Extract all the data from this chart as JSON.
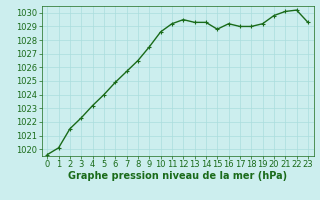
{
  "x": [
    0,
    1,
    2,
    3,
    4,
    5,
    6,
    7,
    8,
    9,
    10,
    11,
    12,
    13,
    14,
    15,
    16,
    17,
    18,
    19,
    20,
    21,
    22,
    23
  ],
  "y": [
    1019.6,
    1020.1,
    1021.5,
    1022.3,
    1023.2,
    1024.0,
    1024.9,
    1025.7,
    1026.5,
    1027.5,
    1028.6,
    1029.2,
    1029.5,
    1029.3,
    1029.3,
    1028.8,
    1029.2,
    1029.0,
    1029.0,
    1029.2,
    1029.8,
    1030.1,
    1030.2,
    1029.3
  ],
  "line_color": "#1a6b1a",
  "marker": "+",
  "background_color": "#cceeee",
  "grid_color": "#aadddd",
  "xlabel": "Graphe pression niveau de la mer (hPa)",
  "xlabel_color": "#1a6b1a",
  "tick_color": "#1a6b1a",
  "ylim": [
    1019.5,
    1030.5
  ],
  "yticks": [
    1020,
    1021,
    1022,
    1023,
    1024,
    1025,
    1026,
    1027,
    1028,
    1029,
    1030
  ],
  "xticks": [
    0,
    1,
    2,
    3,
    4,
    5,
    6,
    7,
    8,
    9,
    10,
    11,
    12,
    13,
    14,
    15,
    16,
    17,
    18,
    19,
    20,
    21,
    22,
    23
  ],
  "xlim": [
    -0.5,
    23.5
  ],
  "xlabel_fontsize": 7,
  "tick_fontsize": 6,
  "line_width": 1.0,
  "marker_size": 3
}
